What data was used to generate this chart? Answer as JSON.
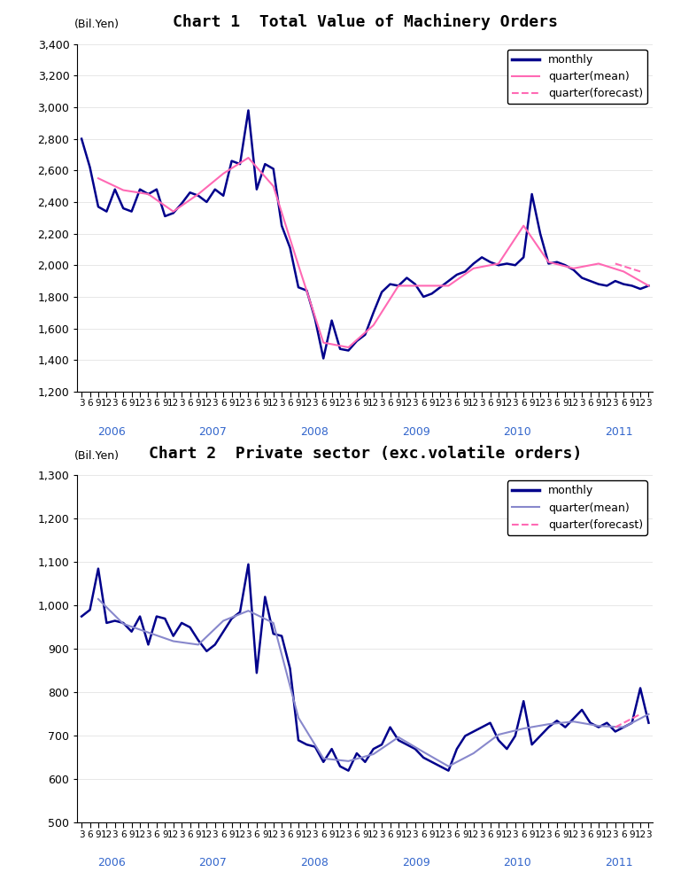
{
  "chart1_title": "Chart 1  Total Value of Machinery Orders",
  "chart2_title": "Chart 2  Private sector (exc.volatile orders)",
  "ylabel": "(Bil.Yen)",
  "chart1_ylim": [
    1200,
    3400
  ],
  "chart1_yticks": [
    1200,
    1400,
    1600,
    1800,
    2000,
    2200,
    2400,
    2600,
    2800,
    3000,
    3200,
    3400
  ],
  "chart2_ylim": [
    500,
    1300
  ],
  "chart2_yticks": [
    500,
    600,
    700,
    800,
    900,
    1000,
    1100,
    1200,
    1300
  ],
  "monthly_color": "#00008B",
  "quarter_mean_color1": "#FF69B4",
  "quarter_mean_color2": "#8888cc",
  "quarter_forecast_color": "#FF69B4",
  "chart1_monthly": [
    2800,
    2620,
    2370,
    2340,
    2480,
    2360,
    2340,
    2480,
    2450,
    2480,
    2310,
    2330,
    2390,
    2460,
    2440,
    2400,
    2480,
    2440,
    2660,
    2640,
    2980,
    2480,
    2640,
    2610,
    2250,
    2110,
    1860,
    1840,
    1660,
    1410,
    1650,
    1470,
    1460,
    1520,
    1560,
    1700,
    1830,
    1880,
    1870,
    1920,
    1880,
    1800,
    1820,
    1860,
    1900,
    1940,
    1960,
    2010,
    2050,
    2020,
    2000,
    2010,
    2000,
    2050,
    2450,
    2200,
    2010,
    2020,
    2000,
    1970,
    1920,
    1900,
    1880,
    1870,
    1900,
    1880,
    1870,
    1850,
    1870
  ],
  "chart1_quarter_mean": [
    null,
    null,
    2550,
    null,
    null,
    2475,
    null,
    null,
    2450,
    null,
    null,
    2340,
    null,
    null,
    2450,
    null,
    null,
    2580,
    null,
    null,
    2680,
    null,
    null,
    2500,
    null,
    null,
    2000,
    null,
    null,
    1510,
    null,
    null,
    1480,
    null,
    null,
    1620,
    null,
    null,
    1870,
    null,
    null,
    1870,
    null,
    null,
    1870,
    null,
    null,
    1980,
    null,
    null,
    2010,
    null,
    null,
    2250,
    null,
    null,
    2020,
    null,
    null,
    1980,
    null,
    null,
    2010,
    null,
    null,
    1960,
    null,
    null,
    1870
  ],
  "chart1_quarter_forecast": [
    null,
    null,
    null,
    null,
    null,
    null,
    null,
    null,
    null,
    null,
    null,
    null,
    null,
    null,
    null,
    null,
    null,
    null,
    null,
    null,
    null,
    null,
    null,
    null,
    null,
    null,
    null,
    null,
    null,
    null,
    null,
    null,
    null,
    null,
    null,
    null,
    null,
    null,
    null,
    null,
    null,
    null,
    null,
    null,
    null,
    null,
    null,
    null,
    null,
    null,
    null,
    null,
    null,
    null,
    null,
    null,
    null,
    null,
    null,
    null,
    null,
    null,
    null,
    null,
    2010,
    null,
    null,
    1960,
    null
  ],
  "chart2_monthly": [
    975,
    990,
    1085,
    960,
    965,
    960,
    940,
    975,
    910,
    975,
    970,
    930,
    960,
    950,
    920,
    895,
    910,
    940,
    970,
    985,
    1095,
    845,
    1020,
    935,
    930,
    855,
    690,
    680,
    675,
    640,
    670,
    630,
    620,
    660,
    640,
    670,
    680,
    720,
    690,
    680,
    670,
    650,
    640,
    630,
    620,
    670,
    700,
    710,
    720,
    730,
    690,
    670,
    700,
    780,
    680,
    700,
    720,
    735,
    720,
    740,
    760,
    730,
    720,
    730,
    710,
    720,
    730,
    810,
    730
  ],
  "chart2_quarter_mean": [
    null,
    null,
    1015,
    null,
    null,
    958,
    null,
    null,
    938,
    null,
    null,
    918,
    null,
    null,
    910,
    null,
    null,
    965,
    null,
    null,
    988,
    null,
    null,
    960,
    null,
    null,
    742,
    null,
    null,
    648,
    null,
    null,
    642,
    null,
    null,
    658,
    null,
    null,
    697,
    null,
    null,
    663,
    null,
    null,
    630,
    null,
    null,
    660,
    null,
    null,
    703,
    null,
    null,
    717,
    null,
    null,
    727,
    null,
    null,
    733,
    null,
    null,
    723,
    null,
    null,
    720,
    null,
    null,
    750
  ],
  "chart2_quarter_forecast": [
    null,
    null,
    null,
    null,
    null,
    null,
    null,
    null,
    null,
    null,
    null,
    null,
    null,
    null,
    null,
    null,
    null,
    null,
    null,
    null,
    null,
    null,
    null,
    null,
    null,
    null,
    null,
    null,
    null,
    null,
    null,
    null,
    null,
    null,
    null,
    null,
    null,
    null,
    null,
    null,
    null,
    null,
    null,
    null,
    null,
    null,
    null,
    null,
    null,
    null,
    null,
    null,
    null,
    null,
    null,
    null,
    null,
    null,
    null,
    null,
    null,
    null,
    null,
    null,
    720,
    null,
    null,
    750,
    null
  ],
  "x_tick_months": [
    3,
    6,
    9,
    12,
    3,
    6,
    9,
    12,
    3,
    6,
    9,
    12,
    3,
    6,
    9,
    12,
    3,
    6,
    9,
    12,
    3,
    6,
    9,
    12,
    3,
    6,
    9,
    12,
    3,
    6,
    9,
    12,
    3,
    6,
    9,
    12,
    3,
    6,
    9,
    12,
    3,
    6,
    9,
    12,
    3,
    6,
    9,
    12,
    3,
    6,
    9,
    12,
    3,
    6,
    9,
    12,
    3,
    6,
    9,
    12,
    3,
    6,
    9,
    12,
    3,
    6,
    9,
    12,
    3
  ],
  "year_labels": [
    {
      "label": "2006",
      "index": 4
    },
    {
      "label": "2007",
      "index": 16
    },
    {
      "label": "2008",
      "index": 28
    },
    {
      "label": "2009",
      "index": 40
    },
    {
      "label": "2010",
      "index": 52
    },
    {
      "label": "2011",
      "index": 64
    }
  ]
}
